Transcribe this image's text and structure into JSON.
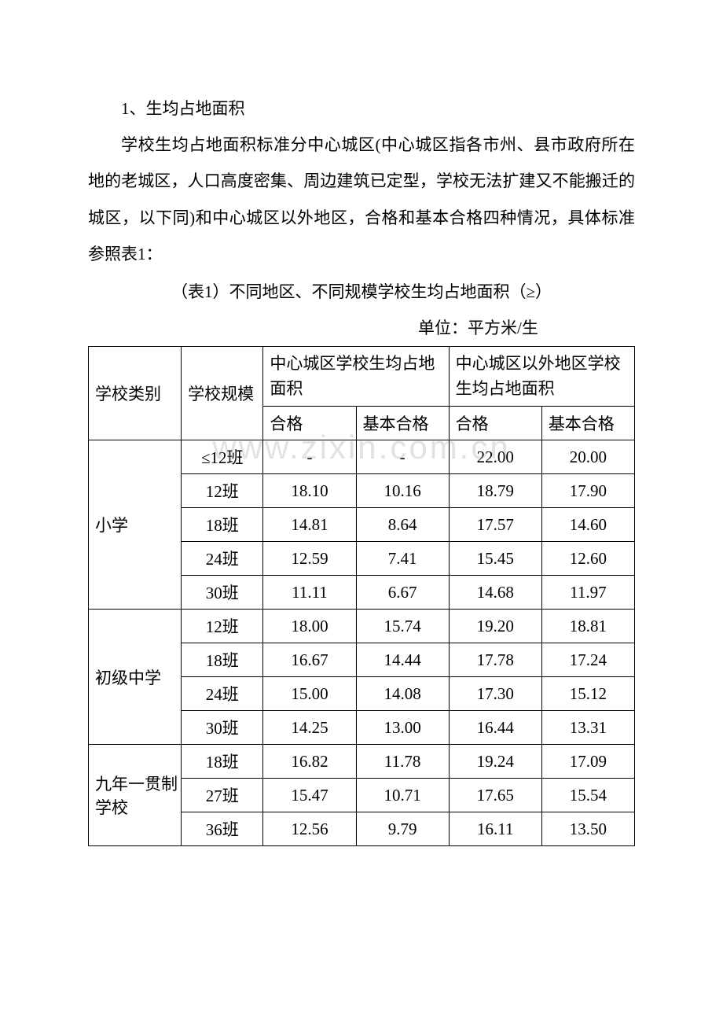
{
  "section_title": "1、生均占地面积",
  "paragraph": "学校生均占地面积标准分中心城区(中心城区指各市州、县市政府所在地的老城区，人口高度密集、周边建筑已定型，学校无法扩建又不能搬迁的城区，以下同)和中心城区以外地区，合格和基本合格四种情况，具体标准参照表1：",
  "table_caption": "（表1）不同地区、不同规模学校生均占地面积（≥）",
  "unit_label": "单位：平方米/生",
  "watermark": "www.zixin.com.cn",
  "headers": {
    "category": "学校类别",
    "scale": "学校规模",
    "center_area": "中心城区学校生均占地面积",
    "outside_area": "中心城区以外地区学校生均占地面积",
    "pass": "合格",
    "basic_pass": "基本合格"
  },
  "categories": [
    {
      "name": "小学",
      "rows": [
        {
          "scale": "≤12班",
          "c1": "-",
          "c2": "-",
          "c3": "22.00",
          "c4": "20.00"
        },
        {
          "scale": "12班",
          "c1": "18.10",
          "c2": "10.16",
          "c3": "18.79",
          "c4": "17.90"
        },
        {
          "scale": "18班",
          "c1": "14.81",
          "c2": "8.64",
          "c3": "17.57",
          "c4": "14.60"
        },
        {
          "scale": "24班",
          "c1": "12.59",
          "c2": "7.41",
          "c3": "15.45",
          "c4": "12.60"
        },
        {
          "scale": "30班",
          "c1": "11.11",
          "c2": "6.67",
          "c3": "14.68",
          "c4": "11.97"
        }
      ]
    },
    {
      "name": "初级中学",
      "rows": [
        {
          "scale": "12班",
          "c1": "18.00",
          "c2": "15.74",
          "c3": "19.20",
          "c4": "18.81"
        },
        {
          "scale": "18班",
          "c1": "16.67",
          "c2": "14.44",
          "c3": "17.78",
          "c4": "17.24"
        },
        {
          "scale": "24班",
          "c1": "15.00",
          "c2": "14.08",
          "c3": "17.30",
          "c4": "15.12"
        },
        {
          "scale": "30班",
          "c1": "14.25",
          "c2": "13.00",
          "c3": "16.44",
          "c4": "13.31"
        }
      ]
    },
    {
      "name": "九年一贯制学校",
      "rows": [
        {
          "scale": "18班",
          "c1": "16.82",
          "c2": "11.78",
          "c3": "19.24",
          "c4": "17.09"
        },
        {
          "scale": "27班",
          "c1": "15.47",
          "c2": "10.71",
          "c3": "17.65",
          "c4": "15.54"
        },
        {
          "scale": "36班",
          "c1": "12.56",
          "c2": "9.79",
          "c3": "16.11",
          "c4": "13.50"
        }
      ]
    }
  ],
  "colors": {
    "background": "#ffffff",
    "text": "#000000",
    "border": "#000000",
    "watermark": "rgba(150,150,150,0.28)"
  }
}
